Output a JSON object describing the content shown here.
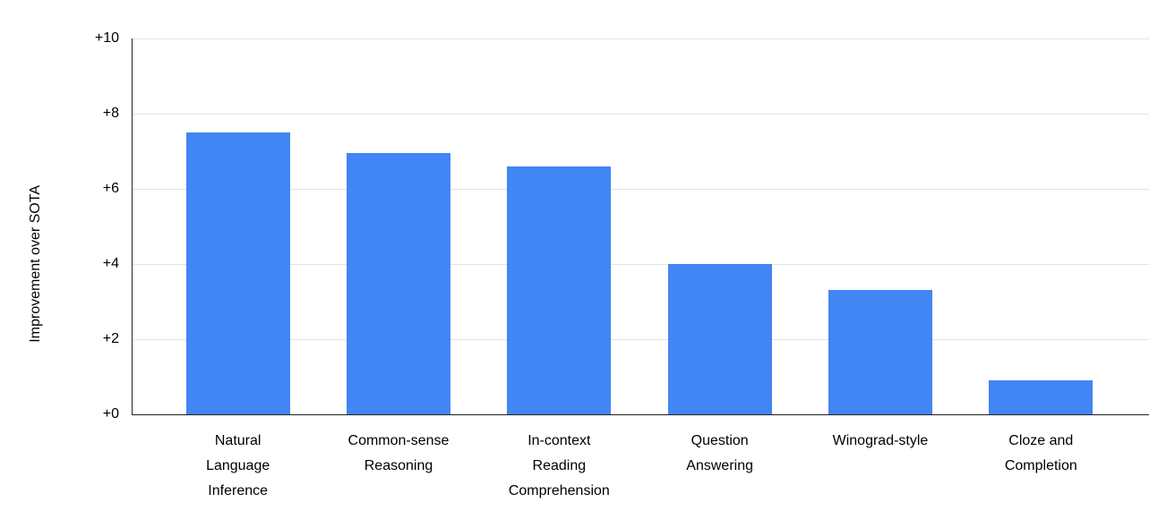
{
  "chart_data": {
    "type": "bar",
    "title": "",
    "xlabel": "",
    "ylabel": "Improvement over SOTA",
    "categories": [
      "Natural Language Inference",
      "Common-sense Reasoning",
      "In-context Reading Comprehension",
      "Question Answering",
      "Winograd-style",
      "Cloze and Completion"
    ],
    "category_display_lines": [
      [
        "Natural",
        "Language",
        "Inference"
      ],
      [
        "Common-sense",
        "Reasoning"
      ],
      [
        "In-context",
        "Reading",
        "Comprehension"
      ],
      [
        "Question",
        "Answering"
      ],
      [
        "Winograd-style"
      ],
      [
        "Cloze and",
        "Completion"
      ]
    ],
    "values": [
      7.5,
      6.95,
      6.6,
      4.0,
      3.3,
      0.9
    ],
    "ylim": [
      0,
      10
    ],
    "ytick_values": [
      0,
      2,
      4,
      6,
      8,
      10
    ],
    "ytick_labels": [
      "+0",
      "+2",
      "+4",
      "+6",
      "+8",
      "+10"
    ],
    "grid": true,
    "legend": "none",
    "colors": {
      "bar": "#4285f4",
      "gridline": "#e3e3e3",
      "axis": "#222222",
      "text": "#000000",
      "background": "#ffffff"
    }
  }
}
